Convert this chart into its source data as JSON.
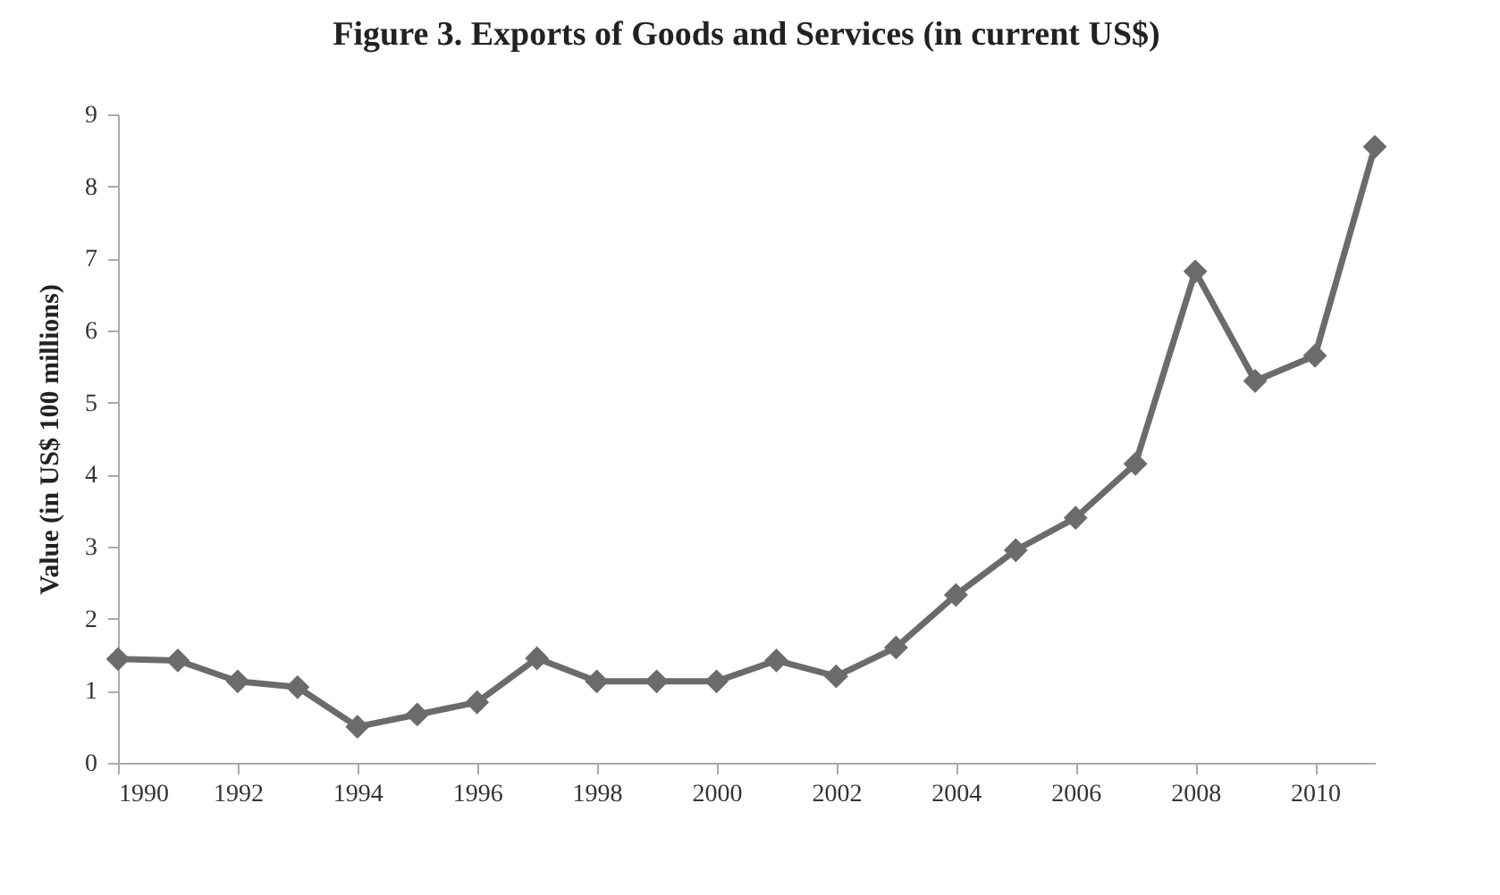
{
  "chart_data": {
    "type": "line",
    "title": "Figure 3. Exports of Goods and Services (in current US$)",
    "ylabel": "Value (in US$ 100 millions)",
    "x": [
      1990,
      1991,
      1992,
      1993,
      1994,
      1995,
      1996,
      1997,
      1998,
      1999,
      2000,
      2001,
      2002,
      2003,
      2004,
      2005,
      2006,
      2007,
      2008,
      2009,
      2010,
      2011
    ],
    "series": [
      {
        "color": "#6b6b6b",
        "values": [
          1.44,
          1.42,
          1.13,
          1.05,
          0.5,
          0.67,
          0.84,
          1.45,
          1.13,
          1.13,
          1.13,
          1.42,
          1.2,
          1.6,
          2.33,
          2.95,
          3.4,
          4.15,
          6.82,
          5.3,
          5.65,
          8.55
        ]
      }
    ],
    "xlim": [
      1990,
      2011
    ],
    "xticks": [
      1990,
      1992,
      1994,
      1996,
      1998,
      2000,
      2002,
      2004,
      2006,
      2008,
      2010
    ],
    "ylim": [
      0,
      9
    ],
    "yticks": [
      0,
      1,
      2,
      3,
      4,
      5,
      6,
      7,
      8,
      9
    ],
    "grid": false,
    "legend": false,
    "marker": "diamond",
    "line_style": "solid"
  }
}
